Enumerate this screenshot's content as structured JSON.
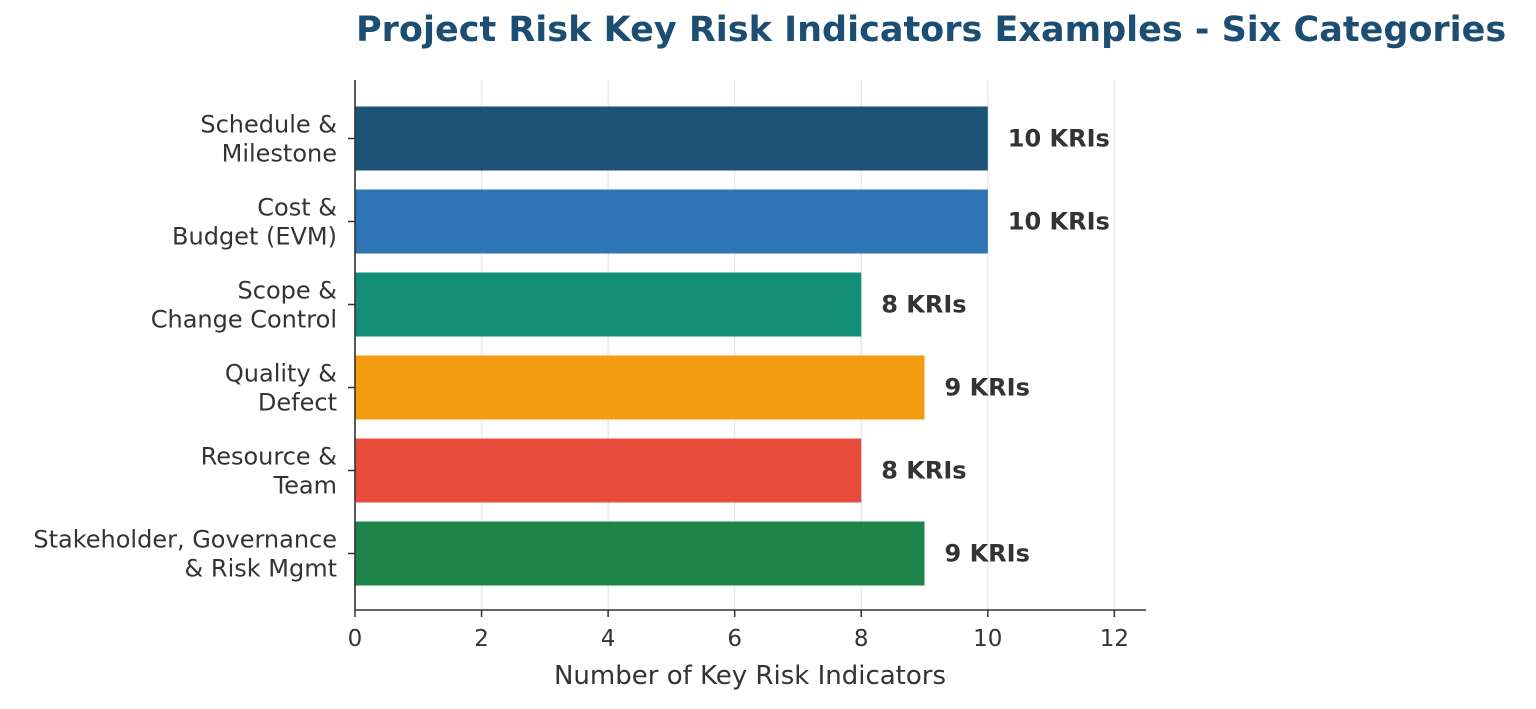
{
  "chart_data": {
    "type": "bar",
    "orientation": "horizontal",
    "title": "Project Risk Key Risk Indicators Examples - Six Categories",
    "xlabel": "Number of Key Risk Indicators",
    "ylabel": "",
    "xlim": [
      0,
      12.5
    ],
    "xticks": [
      0,
      2,
      4,
      6,
      8,
      10,
      12
    ],
    "grid": "vertical",
    "categories": [
      [
        "Schedule &",
        "Milestone"
      ],
      [
        "Cost &",
        "Budget (EVM)"
      ],
      [
        "Scope &",
        "Change Control"
      ],
      [
        "Quality &",
        "Defect"
      ],
      [
        "Resource &",
        "Team"
      ],
      [
        "Stakeholder, Governance",
        "& Risk Mgmt"
      ]
    ],
    "values": [
      10,
      10,
      8,
      9,
      8,
      9
    ],
    "data_labels": [
      "10 KRIs",
      "10 KRIs",
      "8 KRIs",
      "9 KRIs",
      "8 KRIs",
      "9 KRIs"
    ],
    "colors": [
      "#1c5276",
      "#2e75b6",
      "#148f77",
      "#f39c12",
      "#e74c3c",
      "#1e8449"
    ]
  }
}
